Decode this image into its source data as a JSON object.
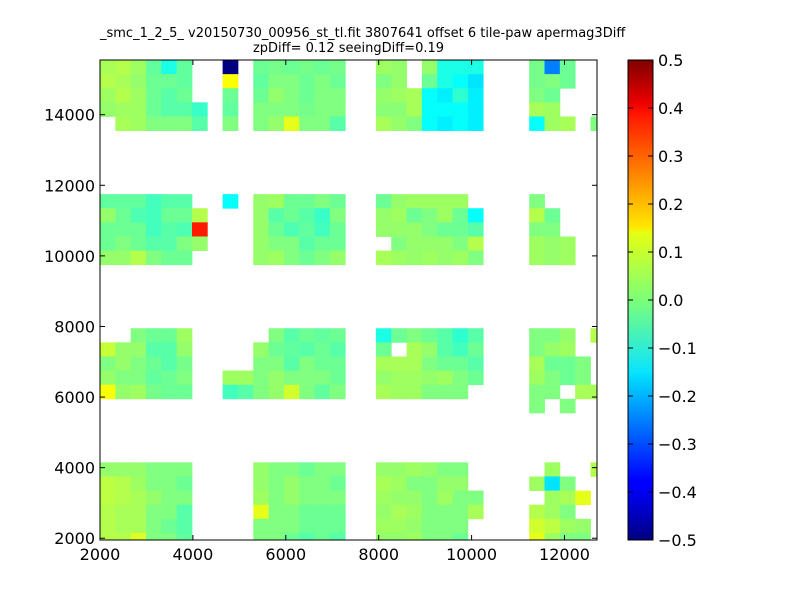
{
  "chart_data": {
    "type": "heatmap",
    "title": "_smc_1_2_5_ v20150730_00956_st_tl.fit 3807641 offset 6 tile-paw apermag3Diff",
    "subtitle": "zpDiff= 0.12 seeingDiff=0.19",
    "xlim": [
      2000,
      12700
    ],
    "ylim": [
      1950,
      15550
    ],
    "x_ticks": [
      "2000",
      "4000",
      "6000",
      "8000",
      "10000",
      "12000"
    ],
    "y_ticks": [
      "2000",
      "4000",
      "6000",
      "8000",
      "10000",
      "12000",
      "14000"
    ],
    "colorbar": {
      "colormap": "jet",
      "range": [
        -0.5,
        0.5
      ],
      "ticks": [
        "0.5",
        "0.4",
        "0.3",
        "0.2",
        "0.1",
        "0.0",
        "−0.1",
        "−0.2",
        "−0.3",
        "−0.4",
        "−0.5"
      ]
    },
    "grid": false,
    "cell_size": [
      330,
      400
    ],
    "x_edges": [
      2000,
      2330,
      2660,
      2990,
      3320,
      3650,
      3980,
      4310,
      4640,
      4970,
      5300,
      5630,
      5960,
      6290,
      6620,
      6950,
      7280,
      7610,
      7940,
      8270,
      8600,
      8930,
      9260,
      9590,
      9920,
      10250,
      10580,
      10910,
      11240,
      11570,
      11900,
      12230,
      12560
    ],
    "y_edges": [
      15550,
      15150,
      14750,
      14350,
      13950,
      11750,
      11350,
      10950,
      10550,
      10150,
      7950,
      7550,
      7150,
      6750,
      6350,
      5950,
      4150,
      3750,
      3350,
      2950,
      2550,
      2150
    ],
    "rows": [
      {
        "y": [
          15150,
          15550
        ],
        "values": [
          0.04,
          0.05,
          0.03,
          -0.03,
          -0.1,
          -0.03,
          null,
          null,
          -0.5,
          null,
          -0.02,
          -0.01,
          -0.02,
          -0.01,
          -0.02,
          -0.01,
          null,
          null,
          0.03,
          0.02,
          null,
          0.02,
          -0.1,
          -0.1,
          -0.1,
          null,
          null,
          null,
          -0.01,
          -0.25,
          -0.02,
          null,
          null
        ]
      },
      {
        "y": [
          14750,
          15150
        ],
        "values": [
          0.05,
          0.04,
          0.02,
          -0.02,
          -0.02,
          -0.03,
          null,
          null,
          0.12,
          null,
          -0.03,
          0.0,
          0.0,
          -0.02,
          0.0,
          -0.02,
          null,
          null,
          0.0,
          0.02,
          null,
          -0.02,
          -0.1,
          -0.12,
          -0.15,
          null,
          null,
          null,
          -0.01,
          0.0,
          -0.02,
          null,
          null
        ]
      },
      {
        "y": [
          14350,
          14750
        ],
        "values": [
          0.03,
          0.05,
          0.03,
          -0.02,
          -0.04,
          -0.02,
          null,
          null,
          -0.02,
          null,
          -0.02,
          0.02,
          0.0,
          -0.02,
          0.0,
          0.0,
          null,
          null,
          0.02,
          0.03,
          0.04,
          -0.12,
          -0.14,
          -0.08,
          -0.14,
          null,
          null,
          null,
          0.0,
          -0.02,
          null,
          null,
          null
        ]
      },
      {
        "y": [
          13950,
          14350
        ],
        "values": [
          0.02,
          0.03,
          0.03,
          -0.02,
          -0.04,
          -0.04,
          -0.07,
          null,
          -0.03,
          null,
          0.0,
          0.0,
          0.0,
          -0.01,
          0.0,
          0.0,
          null,
          null,
          0.01,
          0.01,
          0.04,
          -0.12,
          -0.12,
          -0.12,
          -0.14,
          null,
          null,
          null,
          0.04,
          0.03,
          null,
          null,
          null
        ]
      },
      {
        "y": [
          13550,
          13950
        ],
        "values": [
          null,
          0.04,
          0.03,
          0.0,
          0.0,
          0.0,
          -0.04,
          null,
          0.0,
          null,
          0.0,
          0.02,
          0.1,
          0.0,
          0.0,
          -0.04,
          null,
          null,
          0.04,
          0.02,
          0.0,
          -0.12,
          -0.14,
          -0.12,
          -0.14,
          null,
          null,
          null,
          -0.12,
          0.03,
          0.04,
          null,
          0.0,
          0.03
        ]
      },
      {
        "y": [
          11350,
          11750
        ],
        "values": [
          -0.03,
          -0.03,
          -0.03,
          -0.06,
          -0.04,
          -0.04,
          null,
          null,
          -0.12,
          null,
          0.02,
          0.03,
          -0.02,
          -0.02,
          0.0,
          -0.02,
          null,
          null,
          -0.02,
          0.02,
          0.03,
          0.03,
          0.03,
          0.03,
          null,
          null,
          null,
          null,
          0.0,
          null,
          null,
          null,
          null,
          0.12
        ]
      },
      {
        "y": [
          10950,
          11350
        ],
        "values": [
          0.02,
          -0.02,
          -0.05,
          -0.06,
          -0.02,
          -0.02,
          0.05,
          null,
          null,
          null,
          0.02,
          -0.04,
          -0.02,
          -0.04,
          -0.07,
          0.0,
          null,
          null,
          0.02,
          0.03,
          -0.02,
          0.0,
          0.03,
          -0.02,
          -0.12,
          null,
          null,
          null,
          0.05,
          -0.02,
          null,
          null,
          null
        ]
      },
      {
        "y": [
          10550,
          10950
        ],
        "values": [
          -0.02,
          -0.02,
          -0.02,
          -0.06,
          -0.04,
          -0.05,
          0.35,
          null,
          null,
          null,
          0.02,
          -0.02,
          -0.05,
          -0.03,
          -0.06,
          -0.02,
          null,
          null,
          0.02,
          0.02,
          0.02,
          0.0,
          -0.02,
          -0.02,
          -0.04,
          null,
          null,
          null,
          0.0,
          0.0,
          null,
          null,
          null
        ]
      },
      {
        "y": [
          10150,
          10550
        ],
        "values": [
          -0.02,
          0.0,
          -0.02,
          -0.04,
          -0.04,
          0.0,
          0.02,
          null,
          null,
          null,
          0.02,
          0.0,
          0.0,
          -0.04,
          -0.02,
          -0.02,
          null,
          null,
          null,
          0.0,
          0.02,
          0.02,
          0.02,
          0.0,
          0.05,
          null,
          null,
          null,
          0.03,
          0.02,
          0.03,
          null,
          null
        ]
      },
      {
        "y": [
          9750,
          10150
        ],
        "values": [
          0.02,
          0.02,
          0.05,
          0.0,
          -0.02,
          -0.02,
          null,
          null,
          null,
          null,
          0.02,
          0.03,
          0.0,
          -0.02,
          0.0,
          0.02,
          null,
          null,
          0.04,
          0.03,
          0.02,
          0.03,
          0.02,
          0.03,
          0.0,
          null,
          null,
          null,
          0.03,
          0.02,
          0.03,
          null,
          null,
          -0.02
        ]
      },
      {
        "y": [
          7550,
          7950
        ],
        "values": [
          null,
          null,
          0.0,
          -0.02,
          -0.02,
          0.03,
          null,
          null,
          null,
          null,
          null,
          0.0,
          -0.04,
          -0.02,
          -0.03,
          -0.02,
          null,
          null,
          -0.1,
          -0.02,
          0.0,
          -0.02,
          -0.04,
          -0.08,
          -0.04,
          null,
          null,
          null,
          0.0,
          0.0,
          0.02,
          null,
          0.05,
          0.05
        ]
      },
      {
        "y": [
          7150,
          7550
        ],
        "values": [
          0.07,
          0.02,
          0.02,
          -0.04,
          -0.04,
          0.02,
          null,
          null,
          null,
          null,
          0.02,
          -0.02,
          -0.03,
          -0.04,
          -0.02,
          -0.04,
          null,
          null,
          -0.02,
          null,
          0.04,
          0.02,
          -0.04,
          -0.06,
          -0.02,
          null,
          null,
          null,
          0.0,
          0.02,
          0.03,
          null,
          null
        ]
      },
      {
        "y": [
          6750,
          7150
        ],
        "values": [
          0.0,
          0.02,
          0.0,
          -0.02,
          -0.04,
          -0.01,
          null,
          null,
          null,
          null,
          0.0,
          0.0,
          -0.04,
          0.0,
          -0.02,
          -0.02,
          null,
          null,
          0.04,
          0.04,
          0.04,
          0.0,
          -0.02,
          -0.02,
          -0.04,
          null,
          null,
          null,
          0.04,
          -0.02,
          -0.02,
          0.0,
          null,
          null
        ]
      },
      {
        "y": [
          6350,
          6750
        ],
        "values": [
          0.02,
          0.0,
          0.0,
          -0.03,
          -0.02,
          0.0,
          null,
          null,
          0.03,
          0.03,
          0.0,
          0.02,
          0.0,
          0.0,
          0.0,
          -0.02,
          null,
          null,
          0.02,
          0.03,
          0.03,
          0.02,
          0.03,
          0.0,
          -0.02,
          null,
          null,
          null,
          0.03,
          0.0,
          -0.02,
          0.0,
          null,
          null
        ]
      },
      {
        "y": [
          5950,
          6350
        ],
        "values": [
          0.12,
          0.02,
          0.03,
          -0.01,
          -0.02,
          -0.02,
          null,
          null,
          -0.06,
          -0.04,
          0.0,
          0.02,
          0.08,
          0.0,
          -0.03,
          0.0,
          null,
          null,
          0.04,
          0.03,
          0.03,
          0.0,
          0.0,
          0.0,
          null,
          null,
          null,
          null,
          0.0,
          0.0,
          null,
          0.04,
          0.04,
          0.03
        ]
      },
      {
        "y": [
          5550,
          5950
        ],
        "values": [
          null,
          null,
          null,
          null,
          null,
          null,
          null,
          null,
          null,
          null,
          null,
          null,
          null,
          null,
          null,
          null,
          null,
          null,
          null,
          null,
          null,
          null,
          null,
          null,
          null,
          null,
          null,
          null,
          0.0,
          null,
          0.0,
          null,
          null,
          null
        ]
      },
      {
        "y": [
          3750,
          4150
        ],
        "values": [
          0.02,
          0.02,
          0.02,
          0.0,
          0.0,
          0.0,
          null,
          null,
          null,
          null,
          0.02,
          0.0,
          0.0,
          -0.02,
          0.0,
          0.0,
          null,
          null,
          0.02,
          0.02,
          0.03,
          0.02,
          0.0,
          0.0,
          null,
          null,
          null,
          null,
          null,
          0.03,
          null,
          null,
          0.05
        ]
      },
      {
        "y": [
          3350,
          3750
        ],
        "values": [
          0.06,
          0.05,
          0.03,
          0.0,
          0.0,
          -0.02,
          null,
          null,
          null,
          null,
          0.02,
          0.0,
          0.02,
          0.0,
          0.0,
          -0.02,
          null,
          null,
          0.04,
          0.03,
          0.0,
          0.0,
          0.02,
          0.02,
          null,
          null,
          null,
          null,
          0.03,
          -0.15,
          0.0,
          null,
          null
        ]
      },
      {
        "y": [
          2950,
          3350
        ],
        "values": [
          0.06,
          0.05,
          0.04,
          0.02,
          0.0,
          0.0,
          null,
          null,
          null,
          null,
          0.03,
          0.0,
          0.02,
          0.0,
          0.0,
          0.0,
          null,
          null,
          0.03,
          0.02,
          0.02,
          0.0,
          0.03,
          0.0,
          0.0,
          null,
          null,
          null,
          null,
          0.03,
          0.04,
          0.1,
          null
        ]
      },
      {
        "y": [
          2550,
          2950
        ],
        "values": [
          0.05,
          0.04,
          0.04,
          0.0,
          0.0,
          -0.04,
          null,
          null,
          null,
          null,
          0.1,
          0.0,
          0.0,
          -0.02,
          -0.02,
          -0.02,
          null,
          null,
          0.02,
          0.04,
          0.03,
          0.0,
          0.0,
          0.0,
          0.04,
          null,
          null,
          null,
          0.05,
          0.03,
          0.0,
          null,
          null
        ]
      },
      {
        "y": [
          2150,
          2550
        ],
        "values": [
          0.05,
          0.04,
          0.04,
          0.0,
          -0.02,
          -0.04,
          null,
          null,
          null,
          null,
          0.0,
          0.0,
          0.0,
          -0.02,
          -0.02,
          -0.02,
          null,
          null,
          0.03,
          0.03,
          0.02,
          0.0,
          0.0,
          0.0,
          null,
          null,
          null,
          null,
          0.08,
          0.06,
          0.03,
          0.02,
          null
        ]
      },
      {
        "y": [
          1950,
          2150
        ],
        "values": [
          0.05,
          0.05,
          0.09,
          0.0,
          0.0,
          -0.03,
          null,
          null,
          null,
          null,
          0.0,
          0.0,
          -0.02,
          -0.04,
          -0.02,
          -0.04,
          null,
          null,
          0.02,
          0.02,
          0.03,
          0.0,
          0.0,
          -0.02,
          null,
          null,
          null,
          null,
          0.1,
          0.03,
          0.0,
          0.0,
          null
        ]
      }
    ]
  }
}
